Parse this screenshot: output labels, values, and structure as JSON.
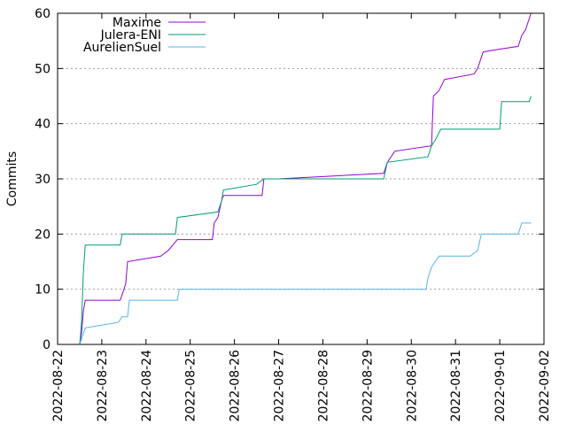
{
  "chart_data": {
    "type": "line",
    "title": "",
    "xlabel": "",
    "ylabel": "Commits",
    "ylim": [
      0,
      60
    ],
    "yticks": [
      0,
      10,
      20,
      30,
      40,
      50,
      60
    ],
    "xlim": [
      "2022-08-22",
      "2022-09-02"
    ],
    "xticks": [
      "2022-08-22",
      "2022-08-23",
      "2022-08-24",
      "2022-08-25",
      "2022-08-26",
      "2022-08-27",
      "2022-08-28",
      "2022-08-29",
      "2022-08-30",
      "2022-08-31",
      "2022-09-01",
      "2022-09-02"
    ],
    "grid": "horizontal-dotted",
    "legend": "top-left",
    "series": [
      {
        "name": "Maxime",
        "color": "#9400d3",
        "points": [
          [
            "2022-08-22 12:00",
            0
          ],
          [
            "2022-08-22 13:00",
            2
          ],
          [
            "2022-08-22 14:00",
            6
          ],
          [
            "2022-08-22 15:00",
            8
          ],
          [
            "2022-08-23 10:00",
            8
          ],
          [
            "2022-08-23 12:00",
            10
          ],
          [
            "2022-08-23 13:00",
            11
          ],
          [
            "2022-08-23 14:00",
            15
          ],
          [
            "2022-08-24 08:00",
            16
          ],
          [
            "2022-08-24 12:00",
            17
          ],
          [
            "2022-08-24 17:00",
            19
          ],
          [
            "2022-08-25 12:00",
            19
          ],
          [
            "2022-08-25 13:00",
            22
          ],
          [
            "2022-08-25 15:00",
            23
          ],
          [
            "2022-08-25 17:00",
            26
          ],
          [
            "2022-08-25 18:00",
            27
          ],
          [
            "2022-08-26 15:00",
            27
          ],
          [
            "2022-08-26 16:00",
            30
          ],
          [
            "2022-08-27 00:00",
            30
          ],
          [
            "2022-08-29 09:00",
            31
          ],
          [
            "2022-08-29 11:00",
            33
          ],
          [
            "2022-08-29 15:00",
            35
          ],
          [
            "2022-08-30 11:00",
            36
          ],
          [
            "2022-08-30 12:00",
            45
          ],
          [
            "2022-08-30 15:00",
            46
          ],
          [
            "2022-08-30 18:00",
            48
          ],
          [
            "2022-08-31 10:00",
            49
          ],
          [
            "2022-08-31 12:00",
            50
          ],
          [
            "2022-08-31 15:00",
            53
          ],
          [
            "2022-09-01 00:00",
            53.5
          ],
          [
            "2022-09-01 10:00",
            54
          ],
          [
            "2022-09-01 12:00",
            56
          ],
          [
            "2022-09-01 14:00",
            57
          ],
          [
            "2022-09-01 17:00",
            60
          ]
        ]
      },
      {
        "name": "Julera-ENI",
        "color": "#009e73",
        "points": [
          [
            "2022-08-22 12:00",
            0
          ],
          [
            "2022-08-22 13:00",
            4
          ],
          [
            "2022-08-22 14:00",
            13
          ],
          [
            "2022-08-22 15:00",
            18
          ],
          [
            "2022-08-23 10:00",
            18
          ],
          [
            "2022-08-23 11:00",
            20
          ],
          [
            "2022-08-24 16:00",
            20
          ],
          [
            "2022-08-24 17:00",
            23
          ],
          [
            "2022-08-25 15:00",
            24
          ],
          [
            "2022-08-25 17:00",
            26
          ],
          [
            "2022-08-25 18:00",
            28
          ],
          [
            "2022-08-26 12:00",
            29
          ],
          [
            "2022-08-26 16:00",
            30
          ],
          [
            "2022-08-29 09:00",
            30
          ],
          [
            "2022-08-29 11:00",
            33
          ],
          [
            "2022-08-30 09:00",
            34
          ],
          [
            "2022-08-30 10:00",
            35
          ],
          [
            "2022-08-30 11:00",
            36
          ],
          [
            "2022-08-30 13:00",
            37
          ],
          [
            "2022-08-30 16:00",
            39
          ],
          [
            "2022-09-01 00:00",
            39
          ],
          [
            "2022-09-01 01:00",
            44
          ],
          [
            "2022-09-01 16:00",
            44
          ],
          [
            "2022-09-01 17:00",
            45
          ]
        ]
      },
      {
        "name": "AurelienSuel",
        "color": "#56b4e9",
        "points": [
          [
            "2022-08-22 12:00",
            0
          ],
          [
            "2022-08-22 14:00",
            2
          ],
          [
            "2022-08-22 15:00",
            3
          ],
          [
            "2022-08-23 09:00",
            4
          ],
          [
            "2022-08-23 11:00",
            5
          ],
          [
            "2022-08-23 14:00",
            5
          ],
          [
            "2022-08-23 15:00",
            8
          ],
          [
            "2022-08-24 17:00",
            8
          ],
          [
            "2022-08-24 18:00",
            10
          ],
          [
            "2022-08-30 08:00",
            10
          ],
          [
            "2022-08-30 09:00",
            12
          ],
          [
            "2022-08-30 11:00",
            14
          ],
          [
            "2022-08-30 13:00",
            15
          ],
          [
            "2022-08-30 15:00",
            16
          ],
          [
            "2022-08-31 08:00",
            16
          ],
          [
            "2022-08-31 12:00",
            17
          ],
          [
            "2022-08-31 14:00",
            20
          ],
          [
            "2022-09-01 10:00",
            20
          ],
          [
            "2022-09-01 12:00",
            22
          ],
          [
            "2022-09-01 17:00",
            22
          ]
        ]
      }
    ]
  }
}
